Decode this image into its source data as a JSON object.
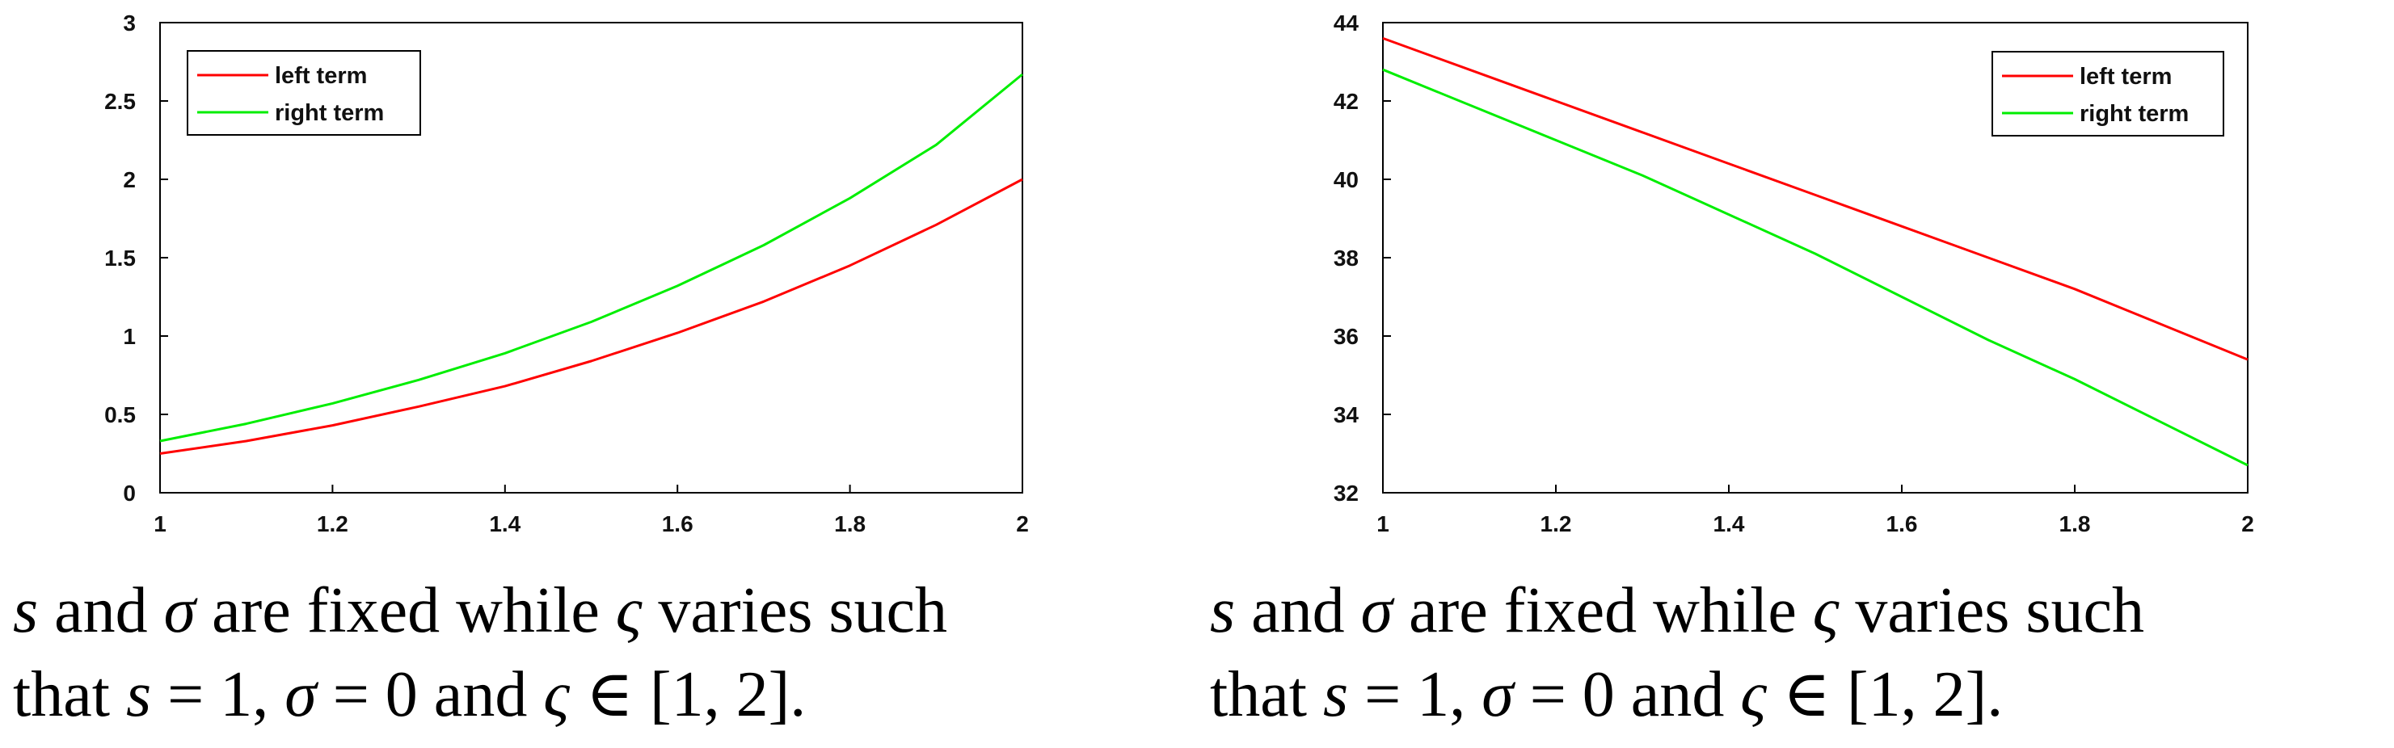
{
  "chart_data": [
    {
      "type": "line",
      "title": "",
      "xlabel": "",
      "ylabel": "",
      "xlim": [
        1,
        2
      ],
      "ylim": [
        0,
        3
      ],
      "xticks": [
        "1",
        "1.2",
        "1.4",
        "1.6",
        "1.8",
        "2"
      ],
      "yticks": [
        "0",
        "0.5",
        "1",
        "1.5",
        "2",
        "2.5",
        "3"
      ],
      "grid": false,
      "legend": "top-left",
      "x": [
        1.0,
        1.1,
        1.2,
        1.3,
        1.4,
        1.5,
        1.6,
        1.7,
        1.8,
        1.9,
        2.0
      ],
      "series": [
        {
          "name": "left term",
          "color": "#ff0000",
          "values": [
            0.25,
            0.33,
            0.43,
            0.55,
            0.68,
            0.84,
            1.02,
            1.22,
            1.45,
            1.71,
            2.0
          ]
        },
        {
          "name": "right term",
          "color": "#00ee00",
          "values": [
            0.33,
            0.44,
            0.57,
            0.72,
            0.89,
            1.09,
            1.32,
            1.58,
            1.88,
            2.22,
            2.67
          ]
        }
      ],
      "caption": {
        "line1": [
          {
            "t": "s",
            "m": true
          },
          {
            "t": " and ",
            "m": false
          },
          {
            "t": "σ",
            "m": true
          },
          {
            "t": " are fixed while ",
            "m": false
          },
          {
            "t": "ς",
            "m": true
          },
          {
            "t": " varies such",
            "m": false
          }
        ],
        "line2": [
          {
            "t": "that ",
            "m": false
          },
          {
            "t": "s",
            "m": true
          },
          {
            "t": " = 1, ",
            "m": false
          },
          {
            "t": "σ",
            "m": true
          },
          {
            "t": " = 0 and ",
            "m": false
          },
          {
            "t": "ς",
            "m": true
          },
          {
            "t": " ∈ [1, 2].",
            "m": false
          }
        ]
      }
    },
    {
      "type": "line",
      "title": "",
      "xlabel": "",
      "ylabel": "",
      "xlim": [
        1,
        2
      ],
      "ylim": [
        32,
        44
      ],
      "xticks": [
        "1",
        "1.2",
        "1.4",
        "1.6",
        "1.8",
        "2"
      ],
      "yticks": [
        "32",
        "34",
        "36",
        "38",
        "40",
        "42",
        "44"
      ],
      "grid": false,
      "legend": "top-right",
      "x": [
        1.0,
        1.1,
        1.2,
        1.3,
        1.4,
        1.5,
        1.6,
        1.7,
        1.8,
        1.9,
        2.0
      ],
      "series": [
        {
          "name": "left term",
          "color": "#ff0000",
          "values": [
            43.6,
            42.8,
            42.0,
            41.2,
            40.4,
            39.6,
            38.8,
            38.0,
            37.2,
            36.3,
            35.4
          ]
        },
        {
          "name": "right term",
          "color": "#00ee00",
          "values": [
            42.8,
            41.9,
            41.0,
            40.1,
            39.1,
            38.1,
            37.0,
            35.9,
            34.9,
            33.8,
            32.7
          ]
        }
      ],
      "caption": {
        "line1": [
          {
            "t": "s",
            "m": true
          },
          {
            "t": " and ",
            "m": false
          },
          {
            "t": "σ",
            "m": true
          },
          {
            "t": " are fixed while ",
            "m": false
          },
          {
            "t": "ς",
            "m": true
          },
          {
            "t": " varies such",
            "m": false
          }
        ],
        "line2": [
          {
            "t": "that ",
            "m": false
          },
          {
            "t": "s",
            "m": true
          },
          {
            "t": " = 1, ",
            "m": false
          },
          {
            "t": "σ",
            "m": true
          },
          {
            "t": " = 0 and ",
            "m": false
          },
          {
            "t": "ς",
            "m": true
          },
          {
            "t": " ∈ [1, 2].",
            "m": false
          }
        ]
      }
    }
  ]
}
